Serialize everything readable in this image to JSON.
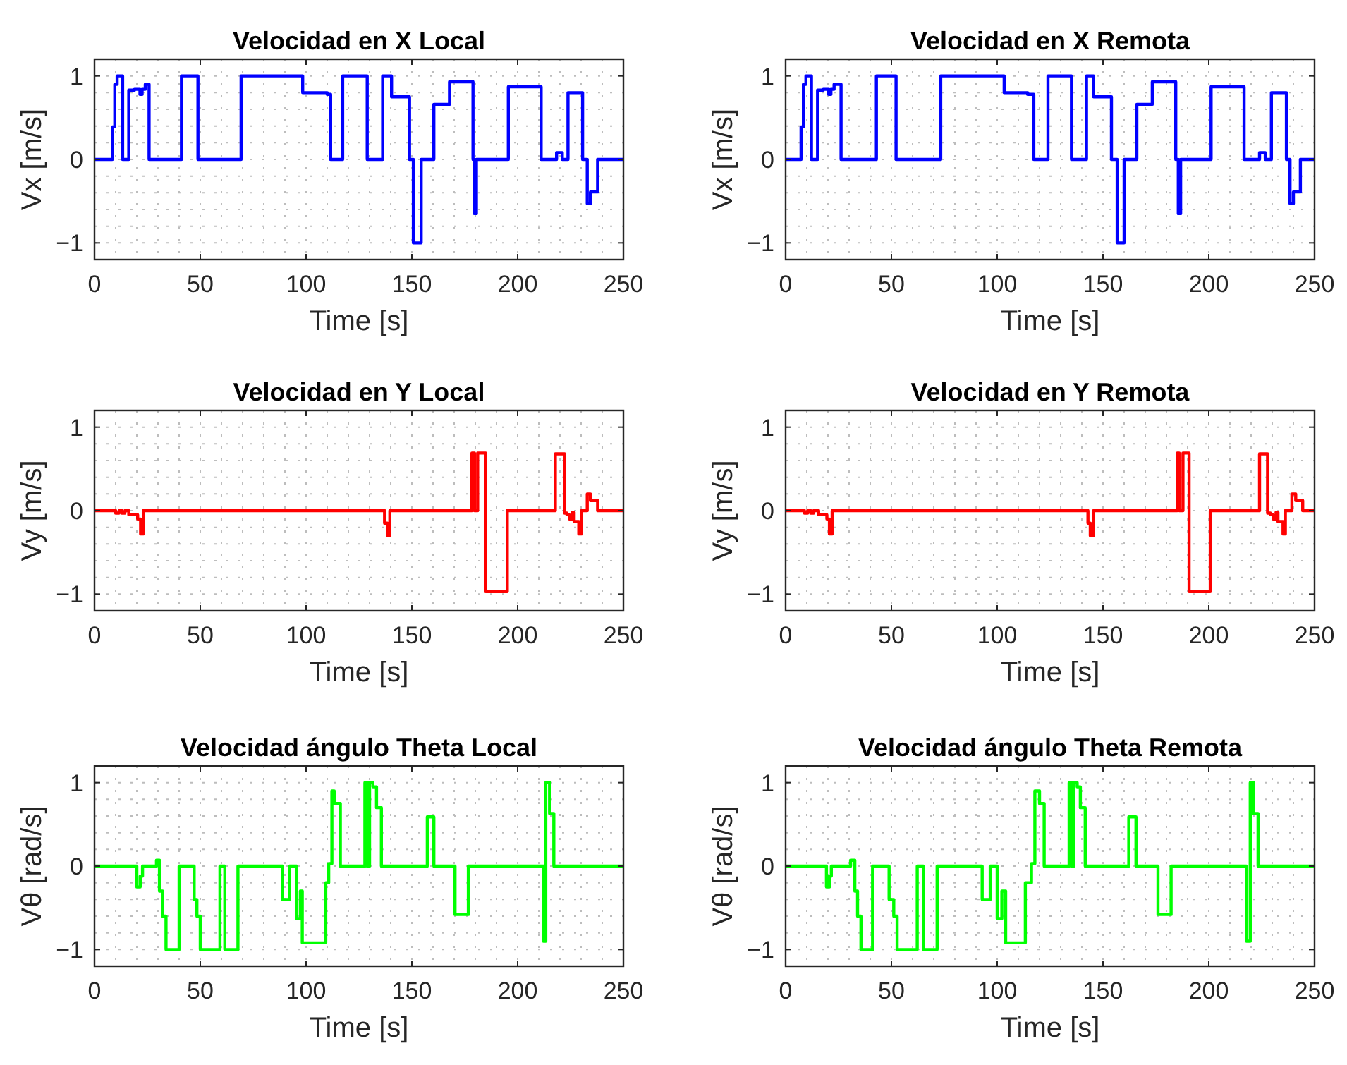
{
  "chart_data": [
    {
      "type": "step",
      "title": "Velocidad en X Local",
      "xlabel": "Time [s]",
      "ylabel": "Vx [m/s]",
      "xlim": [
        0,
        250
      ],
      "ylim": [
        -1.2,
        1.2
      ],
      "xticks": [
        0,
        50,
        100,
        150,
        200,
        250
      ],
      "yticks": [
        -1,
        0,
        1
      ],
      "grid": true,
      "series": [
        {
          "color": "#0000ff",
          "x": [
            0,
            8.4,
            9.6,
            10.7,
            13.3,
            16.2,
            18.9,
            21.5,
            22.5,
            24,
            25.8,
            41.1,
            48.9,
            69.3,
            98.4,
            110,
            111.6,
            117.3,
            128.9,
            136.2,
            140.4,
            148.9,
            150.7,
            154.4,
            160.4,
            167.8,
            178.9,
            179.6,
            180.5,
            195.6,
            211.1,
            218.4,
            221.1,
            223.8,
            230.7,
            232.9,
            234.4,
            237.8,
            250
          ],
          "values": [
            0,
            0.39,
            0.9,
            1,
            0,
            0.83,
            0.84,
            0.78,
            0.84,
            0.9,
            0,
            1,
            0,
            1,
            0.8,
            0.78,
            0,
            1,
            0,
            1,
            0.75,
            0,
            -1,
            0,
            0.66,
            0.93,
            0,
            -0.65,
            0,
            0.87,
            0,
            0.08,
            0,
            0.8,
            0,
            -0.53,
            -0.39,
            0,
            0
          ]
        }
      ]
    },
    {
      "type": "step",
      "title": "Velocidad en X Remota",
      "xlabel": "Time [s]",
      "ylabel": "Vx [m/s]",
      "xlim": [
        0,
        250
      ],
      "ylim": [
        -1.2,
        1.2
      ],
      "xticks": [
        0,
        50,
        100,
        150,
        200,
        250
      ],
      "yticks": [
        -1,
        0,
        1
      ],
      "grid": true,
      "series": [
        {
          "color": "#0000ff",
          "x": [
            0,
            7.3,
            8.4,
            9.6,
            12.2,
            15.1,
            17.8,
            20.4,
            21.4,
            22.9,
            26.2,
            42.9,
            52.2,
            73.3,
            103.3,
            114.4,
            117.3,
            124,
            135.1,
            142.2,
            145.6,
            154,
            156.7,
            160,
            166,
            173.3,
            184.4,
            185.6,
            186.7,
            201.1,
            216.7,
            224,
            226.7,
            229.6,
            236.7,
            238.4,
            240,
            243.3,
            250
          ],
          "values": [
            0,
            0.39,
            0.9,
            1,
            0,
            0.83,
            0.84,
            0.78,
            0.84,
            0.9,
            0,
            1,
            0,
            1,
            0.8,
            0.78,
            0,
            1,
            0,
            1,
            0.75,
            0,
            -1,
            0,
            0.66,
            0.93,
            0,
            -0.65,
            0,
            0.87,
            0,
            0.08,
            0,
            0.8,
            0,
            -0.53,
            -0.39,
            0,
            0
          ]
        }
      ]
    },
    {
      "type": "step",
      "title": "Velocidad en Y Local",
      "xlabel": "Time [s]",
      "ylabel": "Vy [m/s]",
      "xlim": [
        0,
        250
      ],
      "ylim": [
        -1.2,
        1.2
      ],
      "xticks": [
        0,
        50,
        100,
        150,
        200,
        250
      ],
      "yticks": [
        -1,
        0,
        1
      ],
      "grid": true,
      "series": [
        {
          "color": "#ff0000",
          "x": [
            0,
            10,
            11.6,
            12.9,
            14.4,
            16.2,
            20.4,
            21.8,
            23.1,
            137.1,
            138.4,
            139.6,
            178.4,
            179.6,
            181.1,
            184.9,
            195.1,
            217.8,
            222.2,
            223.3,
            224.4,
            225.8,
            226.7,
            228.9,
            230.2,
            232.9,
            234.4,
            237.8,
            250
          ],
          "values": [
            0,
            -0.03,
            0,
            -0.03,
            0,
            -0.05,
            -0.1,
            -0.28,
            0,
            -0.15,
            -0.3,
            0,
            0.69,
            0,
            0.69,
            -0.97,
            0,
            0.68,
            -0.03,
            -0.05,
            -0.1,
            -0.02,
            -0.13,
            -0.28,
            0,
            0.2,
            0.12,
            0,
            0
          ]
        }
      ]
    },
    {
      "type": "step",
      "title": "Velocidad en Y Remota",
      "xlabel": "Time [s]",
      "ylabel": "Vy [m/s]",
      "xlim": [
        0,
        250
      ],
      "ylim": [
        -1.2,
        1.2
      ],
      "xticks": [
        0,
        50,
        100,
        150,
        200,
        250
      ],
      "yticks": [
        -1,
        0,
        1
      ],
      "grid": true,
      "series": [
        {
          "color": "#ff0000",
          "x": [
            0,
            8.9,
            10.4,
            11.8,
            13.3,
            15.6,
            19.5,
            20.7,
            22,
            142.9,
            144,
            145.6,
            185.1,
            186,
            187.8,
            190.7,
            200.7,
            224,
            227.8,
            229.1,
            230.4,
            231.8,
            232.7,
            235.1,
            236.2,
            239.3,
            241.1,
            244.4,
            250
          ],
          "values": [
            0,
            -0.03,
            0,
            -0.03,
            0,
            -0.05,
            -0.1,
            -0.28,
            0,
            -0.15,
            -0.3,
            0,
            0.69,
            0,
            0.69,
            -0.97,
            0,
            0.68,
            -0.03,
            -0.05,
            -0.1,
            -0.02,
            -0.13,
            -0.28,
            0,
            0.2,
            0.12,
            0,
            0
          ]
        }
      ]
    },
    {
      "type": "step",
      "title": "Velocidad ángulo Theta Local",
      "xlabel": "Time [s]",
      "ylabel": "Vθ [rad/s]",
      "xlim": [
        0,
        250
      ],
      "ylim": [
        -1.2,
        1.2
      ],
      "xticks": [
        0,
        50,
        100,
        150,
        200,
        250
      ],
      "yticks": [
        -1,
        0,
        1
      ],
      "grid": true,
      "series": [
        {
          "color": "#00ff00",
          "x": [
            0,
            20,
            21.6,
            22.7,
            29.3,
            30.7,
            32.2,
            33.8,
            40,
            47.1,
            48.4,
            50,
            59.3,
            61.6,
            67.8,
            88.9,
            92.2,
            95.6,
            97.3,
            98.2,
            109.3,
            110.7,
            112.2,
            113.3,
            116.2,
            127.8,
            128.9,
            130,
            131.6,
            133.3,
            135.6,
            157.3,
            160.4,
            170.4,
            176.7,
            212.2,
            213.3,
            215.1,
            217.1,
            250
          ],
          "values": [
            0,
            -0.25,
            -0.12,
            0,
            0.07,
            -0.3,
            -0.6,
            -1,
            0,
            -0.4,
            -0.6,
            -1,
            0,
            -1,
            0,
            -0.4,
            0,
            -0.63,
            -0.3,
            -0.92,
            -0.2,
            0.03,
            0.9,
            0.75,
            0,
            1,
            0,
            1,
            0.95,
            0.7,
            0,
            0.59,
            0,
            -0.58,
            0,
            -0.9,
            1,
            0.63,
            0,
            0
          ]
        }
      ]
    },
    {
      "type": "step",
      "title": "Velocidad ángulo Theta Remota",
      "xlabel": "Time [s]",
      "ylabel": "Vθ [rad/s]",
      "xlim": [
        0,
        250
      ],
      "ylim": [
        -1.2,
        1.2
      ],
      "xticks": [
        0,
        50,
        100,
        150,
        200,
        250
      ],
      "yticks": [
        -1,
        0,
        1
      ],
      "grid": true,
      "series": [
        {
          "color": "#00ff00",
          "x": [
            0,
            19.3,
            20.7,
            21.6,
            30.7,
            32.7,
            34,
            35.6,
            41.1,
            48.9,
            51.1,
            52.7,
            62.2,
            65.1,
            71.6,
            92.9,
            96.7,
            100,
            102.2,
            104,
            113.3,
            116.2,
            117.8,
            120,
            122.2,
            134,
            135.1,
            136.2,
            137.8,
            139.3,
            141.6,
            162.2,
            165.6,
            176,
            182.2,
            217.8,
            219.6,
            221.1,
            223.3,
            250
          ],
          "values": [
            0,
            -0.25,
            -0.12,
            0,
            0.07,
            -0.3,
            -0.6,
            -1,
            0,
            -0.4,
            -0.6,
            -1,
            0,
            -1,
            0,
            -0.4,
            0,
            -0.63,
            -0.3,
            -0.92,
            -0.2,
            0.03,
            0.9,
            0.75,
            0,
            1,
            0,
            1,
            0.95,
            0.7,
            0,
            0.59,
            0,
            -0.58,
            0,
            -0.9,
            1,
            0.63,
            0,
            0
          ]
        }
      ]
    }
  ]
}
